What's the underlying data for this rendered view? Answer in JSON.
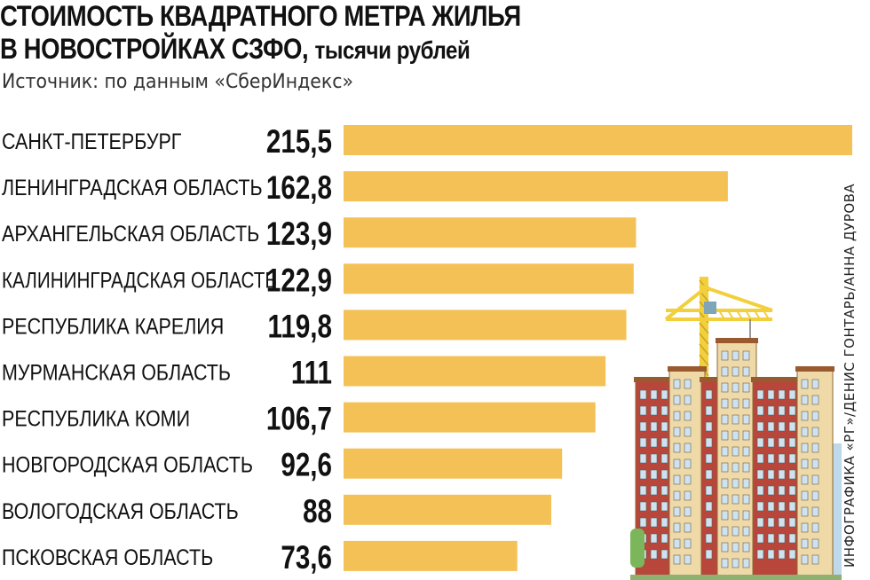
{
  "header": {
    "title_line1": "СТОИМОСТЬ КВАДРАТНОГО МЕТРА ЖИЛЬЯ",
    "title_line2": "В НОВОСТРОЙКАХ СЗФО,",
    "title_unit": "тысячи рублей",
    "source": "Источник: по данным «СберИндекс»",
    "credit": "ИНФОГРАФИКА «РГ»/ДЕНИС ГОНТАРЬ/АННА ДУРОВА"
  },
  "colors": {
    "bar": "#F4C156",
    "building_red": "#B8463B",
    "building_beige": "#EFD9A7",
    "crane": "#F2CF3C",
    "window": "#CFE3EF",
    "tree": "#7CB65A",
    "glass": "#BFD8EA"
  },
  "chart_data": {
    "type": "bar",
    "orientation": "horizontal",
    "categories": [
      "САНКТ-ПЕТЕРБУРГ",
      "ЛЕНИНГРАДСКАЯ ОБЛАСТЬ",
      "АРХАНГЕЛЬСКАЯ ОБЛАСТЬ",
      "КАЛИНИНГРАДСКАЯ ОБЛАСТЬ",
      "РЕСПУБЛИКА КАРЕЛИЯ",
      "МУРМАНСКАЯ ОБЛАСТЬ",
      "РЕСПУБЛИКА КОМИ",
      "НОВГОРОДСКАЯ ОБЛАСТЬ",
      "ВОЛОГОДСКАЯ ОБЛАСТЬ",
      "ПСКОВСКАЯ ОБЛАСТЬ"
    ],
    "values": [
      215.5,
      162.8,
      123.9,
      122.9,
      119.8,
      111,
      106.7,
      92.6,
      88,
      73.6
    ],
    "value_labels": [
      "215,5",
      "162,8",
      "123,9",
      "122,9",
      "119,8",
      "111",
      "106,7",
      "92,6",
      "88",
      "73,6"
    ],
    "title": "СТОИМОСТЬ КВАДРАТНОГО МЕТРА ЖИЛЬЯ В НОВОСТРОЙКАХ СЗФО, тысячи рублей",
    "xlabel": "",
    "ylabel": "",
    "xlim": [
      0,
      215.5
    ],
    "grid": false,
    "legend": "none"
  }
}
